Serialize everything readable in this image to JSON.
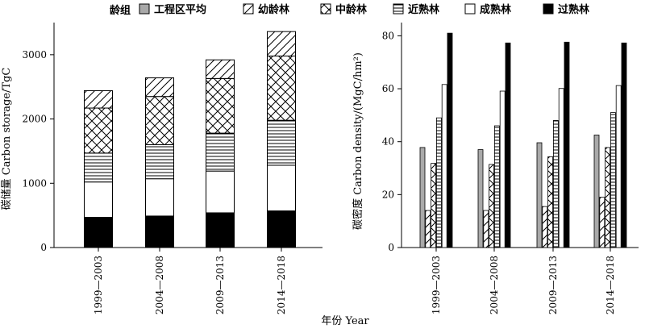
{
  "figure": {
    "xlabel_shared": "年份 Year"
  },
  "legend": {
    "title": "龄组",
    "items": [
      {
        "key": "avg",
        "label": "工程区平均"
      },
      {
        "key": "young",
        "label": "幼龄林"
      },
      {
        "key": "middle",
        "label": "中龄林"
      },
      {
        "key": "near",
        "label": "近熟林"
      },
      {
        "key": "mature",
        "label": "成熟林"
      },
      {
        "key": "over",
        "label": "过熟林"
      }
    ]
  },
  "chart_data": [
    {
      "type": "bar",
      "stacked": true,
      "ylabel": "碳储量 Carbon storage/TgC",
      "ylim": [
        0,
        3500
      ],
      "yticks": [
        0,
        1000,
        2000,
        3000
      ],
      "categories": [
        "1999—2003",
        "2004—2008",
        "2009—2013",
        "2014—2018"
      ],
      "series": [
        {
          "key": "over",
          "name": "过熟林",
          "values": [
            470,
            490,
            540,
            570
          ]
        },
        {
          "key": "mature",
          "name": "成熟林",
          "values": [
            550,
            580,
            650,
            710
          ]
        },
        {
          "key": "near",
          "name": "近熟林",
          "values": [
            450,
            530,
            590,
            700
          ]
        },
        {
          "key": "middle",
          "name": "中龄林",
          "values": [
            700,
            750,
            850,
            1000
          ]
        },
        {
          "key": "young",
          "name": "幼龄林",
          "values": [
            270,
            290,
            290,
            380
          ]
        }
      ]
    },
    {
      "type": "bar",
      "ylabel": "碳密度 Carbon density/(MgC/hm²)",
      "ylim": [
        0,
        85
      ],
      "yticks": [
        0,
        20,
        40,
        60,
        80
      ],
      "categories": [
        "1999—2003",
        "2004—2008",
        "2009—2013",
        "2014—2018"
      ],
      "series": [
        {
          "key": "avg",
          "name": "工程区平均",
          "values": [
            37.8,
            37.0,
            39.6,
            42.5
          ]
        },
        {
          "key": "young",
          "name": "幼龄林",
          "values": [
            14.0,
            14.0,
            15.5,
            19.0
          ]
        },
        {
          "key": "middle",
          "name": "中龄林",
          "values": [
            31.8,
            31.4,
            34.3,
            37.8
          ]
        },
        {
          "key": "near",
          "name": "近熟林",
          "values": [
            49.0,
            46.0,
            48.0,
            51.0
          ]
        },
        {
          "key": "mature",
          "name": "成熟林",
          "values": [
            61.6,
            59.1,
            60.1,
            61.2
          ]
        },
        {
          "key": "over",
          "name": "过熟林",
          "values": [
            81.0,
            77.3,
            77.6,
            77.3
          ]
        }
      ]
    }
  ],
  "colors": {
    "avg": "#a9a9a9",
    "over": "#000000",
    "outline": "#000000",
    "white": "#ffffff"
  }
}
